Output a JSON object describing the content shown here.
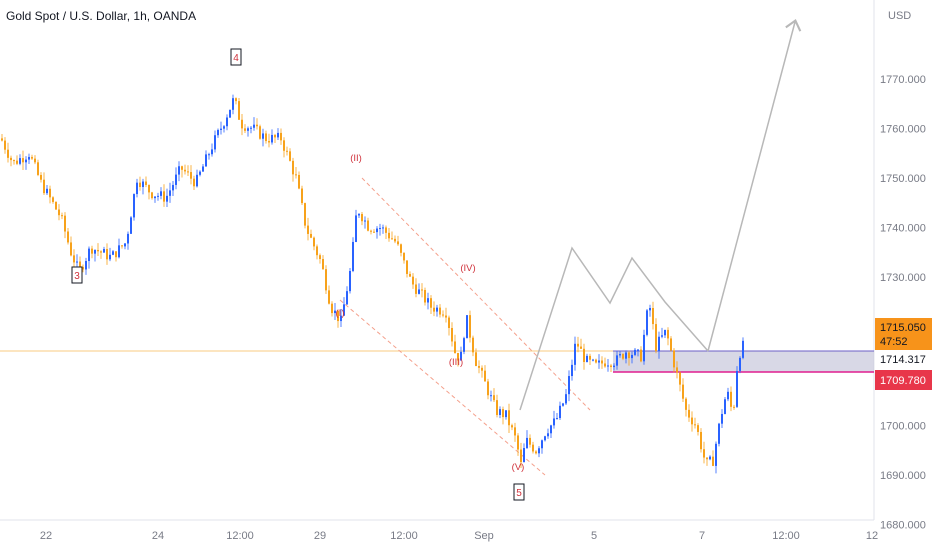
{
  "header": {
    "symbol_title": "Gold Spot / U.S. Dollar, 1h, OANDA"
  },
  "colors": {
    "up": "#2962ff",
    "down": "#f7a21b",
    "wave": "#d0323c",
    "price_tag": "#f7931a",
    "support_tag": "#e8364a",
    "zone": "#c8c7dc",
    "zone_line": "#6d5fc7",
    "support_line": "#e01f8f",
    "projection": "#b8b8b8"
  },
  "chart_data": {
    "type": "candlestick",
    "title": "Gold Spot / U.S. Dollar, 1h, OANDA",
    "ylabel": "USD",
    "ylim": [
      1676,
      1779
    ],
    "x_ticks": [
      "22",
      "24",
      "12:00",
      "29",
      "12:00",
      "Sep",
      "5",
      "7",
      "12:00",
      "12"
    ],
    "y_ticks": [
      "1770.000",
      "1760.000",
      "1750.000",
      "1740.000",
      "1730.000",
      "1720.000",
      "1710.000",
      "1700.000",
      "1690.000",
      "1680.000"
    ],
    "y_tick_values": [
      1770,
      1760,
      1750,
      1740,
      1730,
      1720,
      1710,
      1700,
      1690,
      1680
    ],
    "price_path": [
      [
        0,
        1758
      ],
      [
        12,
        1753
      ],
      [
        28,
        1755
      ],
      [
        40,
        1749
      ],
      [
        60,
        1742
      ],
      [
        70,
        1735
      ],
      [
        78,
        1731
      ],
      [
        90,
        1736
      ],
      [
        110,
        1734
      ],
      [
        125,
        1737
      ],
      [
        136,
        1750
      ],
      [
        150,
        1747
      ],
      [
        165,
        1746
      ],
      [
        180,
        1752
      ],
      [
        195,
        1749
      ],
      [
        210,
        1756
      ],
      [
        222,
        1761
      ],
      [
        233,
        1766
      ],
      [
        240,
        1761
      ],
      [
        252,
        1760
      ],
      [
        265,
        1758
      ],
      [
        280,
        1758
      ],
      [
        295,
        1750
      ],
      [
        305,
        1740
      ],
      [
        320,
        1733
      ],
      [
        330,
        1724
      ],
      [
        340,
        1721
      ],
      [
        350,
        1732
      ],
      [
        356,
        1744
      ],
      [
        368,
        1740
      ],
      [
        380,
        1740
      ],
      [
        395,
        1737
      ],
      [
        410,
        1729
      ],
      [
        430,
        1724
      ],
      [
        445,
        1723
      ],
      [
        455,
        1714
      ],
      [
        460,
        1714
      ],
      [
        465,
        1722
      ],
      [
        475,
        1713
      ],
      [
        485,
        1708
      ],
      [
        495,
        1703
      ],
      [
        505,
        1702
      ],
      [
        515,
        1697
      ],
      [
        520,
        1692
      ],
      [
        525,
        1697
      ],
      [
        535,
        1695
      ],
      [
        545,
        1699
      ],
      [
        555,
        1701
      ],
      [
        565,
        1706
      ],
      [
        575,
        1717
      ],
      [
        585,
        1713
      ],
      [
        595,
        1712
      ],
      [
        605,
        1713
      ],
      [
        615,
        1713
      ],
      [
        625,
        1715
      ],
      [
        640,
        1714
      ],
      [
        648,
        1725
      ],
      [
        655,
        1716
      ],
      [
        665,
        1719
      ],
      [
        675,
        1711
      ],
      [
        685,
        1703
      ],
      [
        695,
        1700
      ],
      [
        705,
        1692
      ],
      [
        712,
        1693
      ],
      [
        720,
        1702
      ],
      [
        726,
        1707
      ],
      [
        732,
        1702
      ],
      [
        737,
        1714
      ],
      [
        742,
        1716
      ]
    ],
    "current_price": "1715.050",
    "countdown": "47:52",
    "support_price": "1714.317",
    "low_price": "1709.780",
    "zone_top": 1715.05,
    "zone_bottom": 1710.8,
    "wave_labels": [
      {
        "text": "4",
        "boxed": true
      },
      {
        "text": "3",
        "boxed": true
      },
      {
        "text": "5",
        "boxed": true
      },
      {
        "text": "(I)",
        "boxed": false
      },
      {
        "text": "(II)",
        "boxed": false
      },
      {
        "text": "(III)",
        "boxed": false
      },
      {
        "text": "(IV)",
        "boxed": false
      },
      {
        "text": "(V)",
        "boxed": false
      }
    ]
  }
}
